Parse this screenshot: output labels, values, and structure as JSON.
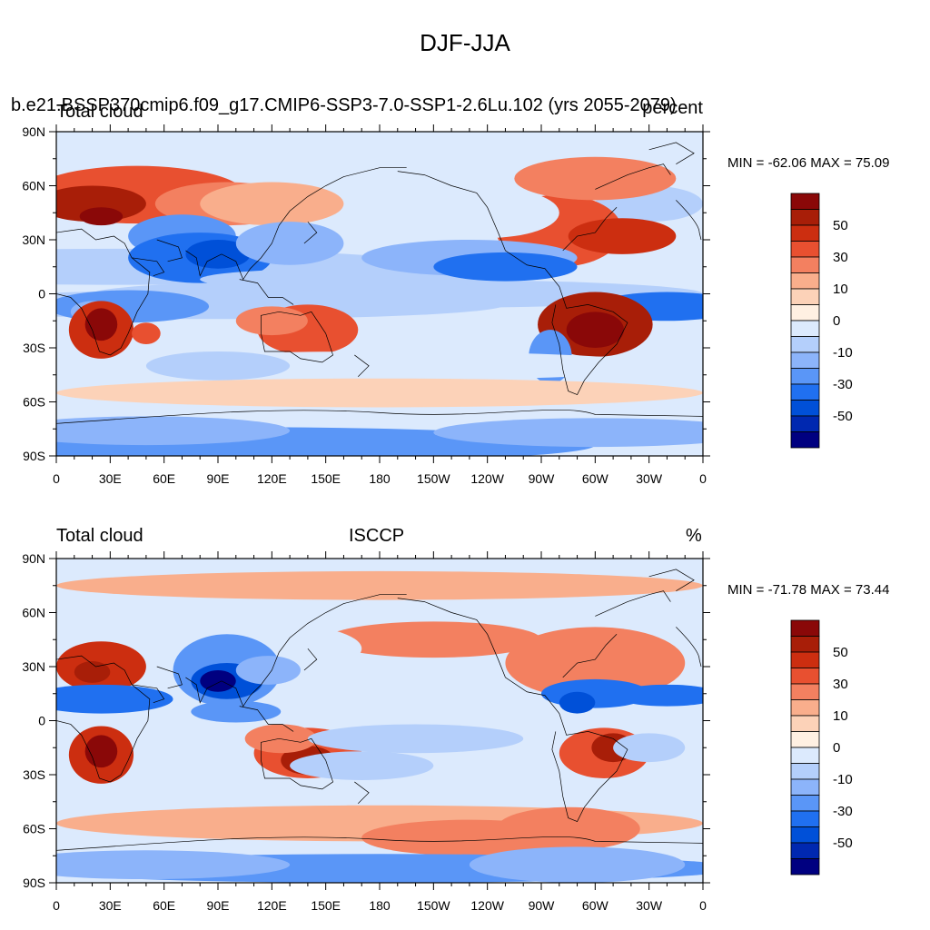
{
  "figure_title": "DJF-JJA",
  "colors": {
    "levels": [
      "#000080",
      "#0028b0",
      "#0050d8",
      "#2070f0",
      "#5a96f7",
      "#8cb4fa",
      "#b4cffb",
      "#dceafd",
      "#fff0e2",
      "#fcd2b8",
      "#f9ae8c",
      "#f38060",
      "#e85030",
      "#cc2e10",
      "#a81e08",
      "#8a0808"
    ],
    "coastline": "#000000"
  },
  "panels": [
    {
      "id": "top",
      "case_title": "b.e21.BSSP370cmip6.f09_g17.CMIP6-SSP3-7.0-SSP1-2.6Lu.102 (yrs 2055-2079)",
      "left_title": "Total cloud",
      "center_title": "",
      "right_title": "percent",
      "min_max": "MIN = -62.06 MAX =  75.09"
    },
    {
      "id": "bottom",
      "case_title": "",
      "left_title": "Total cloud",
      "center_title": "ISCCP",
      "right_title": "%",
      "min_max": "MIN = -71.78 MAX =  73.44"
    }
  ],
  "axes": {
    "lat_labels": [
      "90N",
      "60N",
      "30N",
      "0",
      "30S",
      "60S",
      "90S"
    ],
    "lon_labels": [
      "0",
      "30E",
      "60E",
      "90E",
      "120E",
      "150E",
      "180",
      "150W",
      "120W",
      "90W",
      "60W",
      "30W",
      "0"
    ]
  },
  "colorbar_labels": [
    "50",
    "30",
    "10",
    "0",
    "-10",
    "-30",
    "-50"
  ],
  "chart_data": [
    {
      "type": "heatmap",
      "title": "DJF-JJA",
      "subtitle": "b.e21.BSSP370cmip6.f09_g17.CMIP6-SSP3-7.0-SSP1-2.6Lu.102 (yrs 2055-2079)",
      "left_label": "Total cloud",
      "units": "percent",
      "stats": {
        "min": -62.06,
        "max": 75.09
      },
      "x_ticks": [
        "0",
        "30E",
        "60E",
        "90E",
        "120E",
        "150E",
        "180",
        "150W",
        "120W",
        "90W",
        "60W",
        "30W",
        "0"
      ],
      "y_ticks": [
        "90N",
        "60N",
        "30N",
        "0",
        "30S",
        "60S",
        "90S"
      ],
      "xlim_deg": [
        0,
        360
      ],
      "ylim_deg": [
        -90,
        90
      ],
      "colorbar_ticks": [
        50,
        30,
        10,
        0,
        -10,
        -30,
        -50
      ]
    },
    {
      "type": "heatmap",
      "title": "DJF-JJA",
      "left_label": "Total cloud",
      "center_label": "ISCCP",
      "units": "%",
      "stats": {
        "min": -71.78,
        "max": 73.44
      },
      "x_ticks": [
        "0",
        "30E",
        "60E",
        "90E",
        "120E",
        "150E",
        "180",
        "150W",
        "120W",
        "90W",
        "60W",
        "30W",
        "0"
      ],
      "y_ticks": [
        "90N",
        "60N",
        "30N",
        "0",
        "30S",
        "60S",
        "90S"
      ],
      "xlim_deg": [
        0,
        360
      ],
      "ylim_deg": [
        -90,
        90
      ],
      "colorbar_ticks": [
        50,
        30,
        10,
        0,
        -10,
        -30,
        -50
      ]
    }
  ]
}
